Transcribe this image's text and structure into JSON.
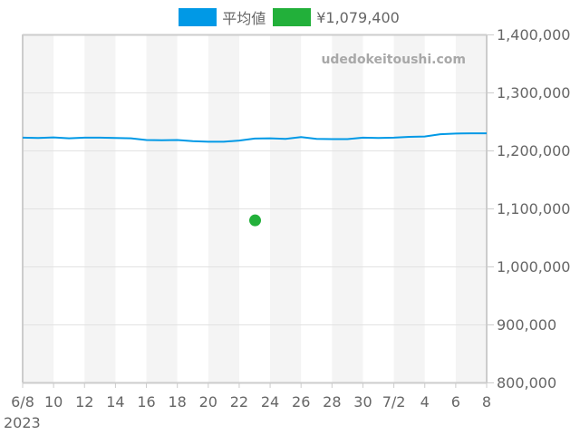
{
  "legend": {
    "items": [
      {
        "label": "平均値",
        "color": "#0099e6"
      },
      {
        "label": "¥1,079,400",
        "color": "#22b03a"
      }
    ]
  },
  "watermark": "udedokeitoushi.com",
  "year_label": "2023",
  "chart_data": {
    "type": "line",
    "title": "",
    "xlabel": "",
    "ylabel": "",
    "ylim": [
      800000,
      1400000
    ],
    "yticks": [
      "1,400,000",
      "1,300,000",
      "1,200,000",
      "1,100,000",
      "1,000,000",
      "900,000",
      "800,000"
    ],
    "ytick_values": [
      1400000,
      1300000,
      1200000,
      1100000,
      1000000,
      900000,
      800000
    ],
    "xticks": [
      "6/8",
      "10",
      "12",
      "14",
      "16",
      "18",
      "20",
      "22",
      "24",
      "26",
      "28",
      "30",
      "7/2",
      "4",
      "6",
      "8"
    ],
    "x_range_days": [
      0,
      30
    ],
    "x_start_date": "2023-06-08",
    "x_end_date": "2023-07-08",
    "grid": true,
    "alternating_column_bands": true,
    "legend_position": "top",
    "series": [
      {
        "name": "平均値",
        "type": "line",
        "color": "#0099e6",
        "day_offsets": [
          0,
          1,
          2,
          3,
          4,
          5,
          6,
          7,
          8,
          9,
          10,
          11,
          12,
          13,
          14,
          15,
          16,
          17,
          18,
          19,
          20,
          21,
          22,
          23,
          24,
          25,
          26,
          27,
          28,
          29,
          30
        ],
        "values": [
          1222000,
          1221500,
          1222500,
          1221000,
          1222000,
          1222000,
          1221500,
          1221000,
          1218000,
          1217500,
          1218000,
          1216000,
          1215000,
          1215000,
          1217000,
          1220500,
          1221000,
          1220000,
          1223000,
          1220000,
          1219500,
          1219500,
          1222000,
          1221500,
          1222000,
          1223500,
          1224000,
          1228000,
          1229000,
          1229500,
          1229500
        ]
      },
      {
        "name": "¥1,079,400",
        "type": "scatter",
        "color": "#22b03a",
        "points": [
          {
            "date": "6/23",
            "day_offset": 15,
            "value": 1079400
          }
        ]
      }
    ]
  }
}
